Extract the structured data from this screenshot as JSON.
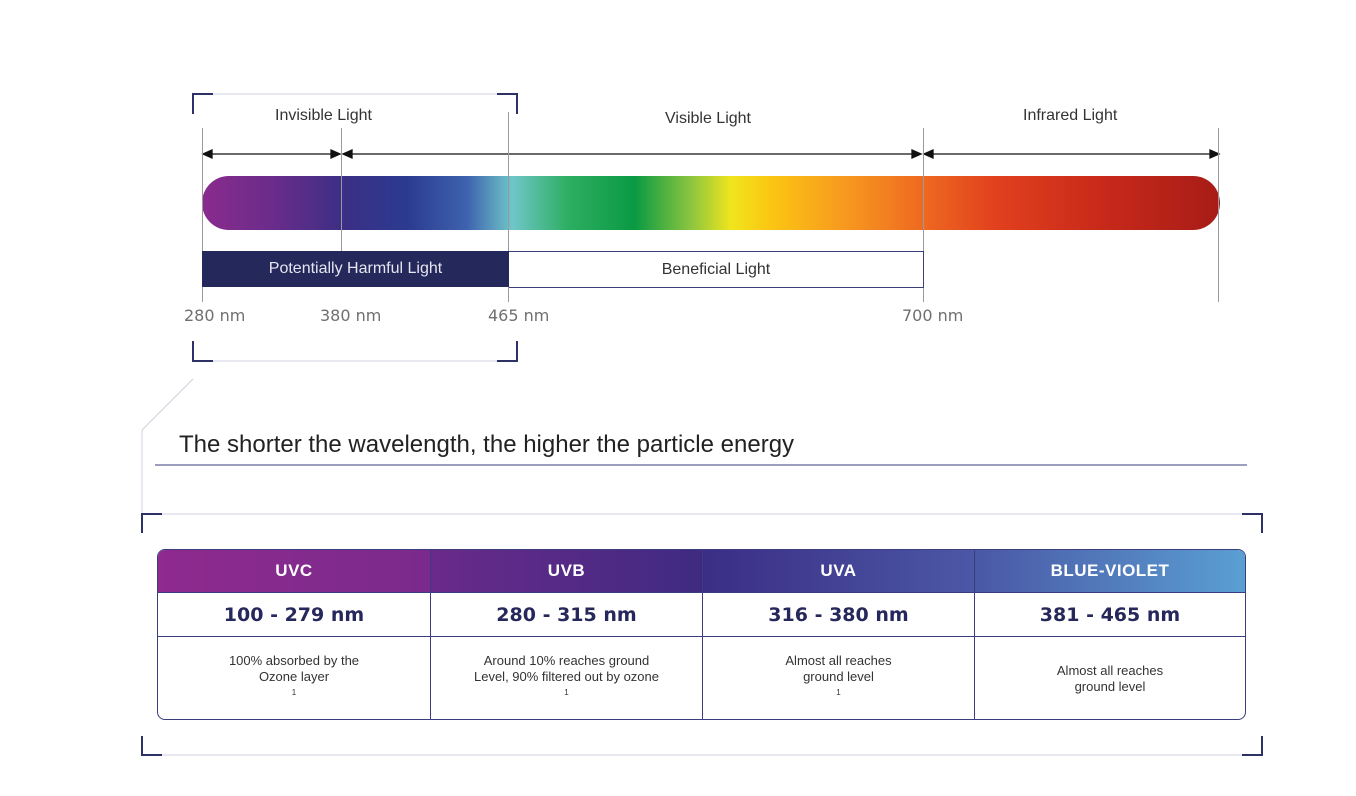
{
  "regions": {
    "invisible": "Invisible Light",
    "visible": "Visible Light",
    "infrared": "Infrared Light"
  },
  "bands": {
    "harmful": "Potentially Harmful Light",
    "beneficial": "Beneficial Light"
  },
  "wavelengths": [
    "280 nm",
    "380 nm",
    "465 nm",
    "700 nm"
  ],
  "headline": "The shorter the wavelength, the higher the particle energy",
  "table": [
    {
      "name": "UVC",
      "range": "100 - 279 nm",
      "desc_line1": "100% absorbed by the",
      "desc_line2": "Ozone layer",
      "sup": "1",
      "gradient": [
        "#8f2a8f",
        "#7a2a8c"
      ]
    },
    {
      "name": "UVB",
      "range": "280 - 315 nm",
      "desc_line1": "Around 10% reaches ground",
      "desc_line2": "Level, 90% filtered out by ozone",
      "sup": "1",
      "gradient": [
        "#6a2a8a",
        "#3f2a82"
      ]
    },
    {
      "name": "UVA",
      "range": "316 - 380 nm",
      "desc_line1": "Almost all reaches",
      "desc_line2": "ground level",
      "sup": "1",
      "gradient": [
        "#3b2d85",
        "#4b58a6"
      ]
    },
    {
      "name": "BLUE-VIOLET",
      "range": "381 - 465 nm",
      "desc_line1": "Almost all reaches",
      "desc_line2": "ground level",
      "sup": "",
      "gradient": [
        "#4a57a5",
        "#5a9fd3"
      ]
    }
  ],
  "colors": {
    "dark_navy": "#25285b",
    "bracket": "#2e3165",
    "border": "#3b3d7e"
  }
}
